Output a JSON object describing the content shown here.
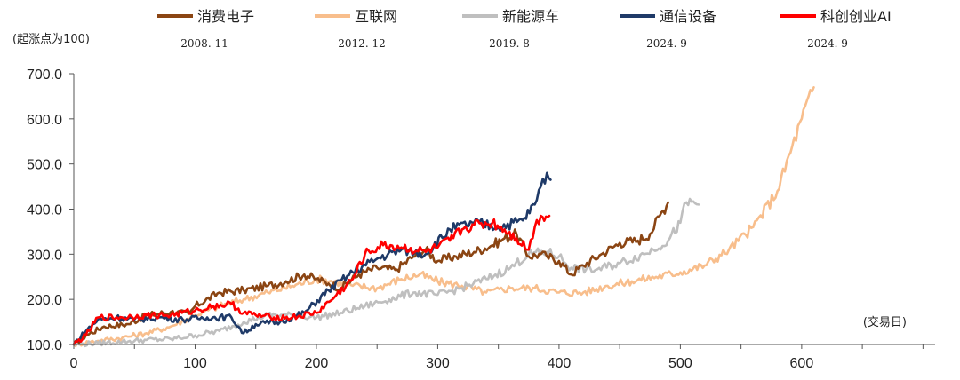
{
  "chart_data": {
    "type": "line",
    "ylabel": "(起涨点为100)",
    "xlabel": "(交易日)",
    "xlim": [
      0,
      710
    ],
    "ylim": [
      100,
      700
    ],
    "x_ticks": [
      0,
      100,
      200,
      300,
      400,
      500,
      600
    ],
    "y_ticks": [
      100,
      200,
      300,
      400,
      500,
      600,
      700
    ],
    "y_tick_labels": [
      "100.0",
      "200.0",
      "300.0",
      "400.0",
      "500.0",
      "600.0",
      "700.0"
    ],
    "grid": false,
    "legend_position": "top",
    "series": [
      {
        "name": "消费电子",
        "start_date": "2008. 11",
        "color": "#8B4513",
        "x": [
          0,
          10,
          25,
          45,
          60,
          80,
          95,
          100,
          120,
          140,
          160,
          175,
          190,
          200,
          210,
          220,
          235,
          250,
          265,
          280,
          290,
          300,
          315,
          330,
          345,
          355,
          365,
          375,
          385,
          390,
          400,
          410,
          420,
          435,
          450,
          465,
          475,
          483,
          490
        ],
        "y": [
          100,
          120,
          140,
          145,
          165,
          172,
          168,
          185,
          215,
          220,
          230,
          240,
          255,
          245,
          235,
          225,
          255,
          270,
          265,
          295,
          310,
          285,
          295,
          305,
          320,
          335,
          345,
          295,
          300,
          295,
          285,
          255,
          275,
          300,
          325,
          330,
          345,
          385,
          415
        ]
      },
      {
        "name": "互联网",
        "start_date": "2012. 12",
        "color": "#F8BE8C",
        "x": [
          0,
          20,
          40,
          60,
          80,
          100,
          120,
          140,
          160,
          180,
          200,
          215,
          230,
          250,
          270,
          285,
          300,
          320,
          340,
          360,
          380,
          400,
          420,
          440,
          460,
          480,
          500,
          520,
          540,
          560,
          580,
          600,
          610
        ],
        "y": [
          100,
          108,
          115,
          125,
          140,
          165,
          185,
          200,
          215,
          230,
          245,
          240,
          230,
          225,
          245,
          255,
          240,
          230,
          215,
          225,
          225,
          215,
          215,
          230,
          240,
          250,
          260,
          275,
          310,
          360,
          440,
          600,
          670
        ]
      },
      {
        "name": "新能源车",
        "start_date": "2019. 8",
        "color": "#BFBFBF",
        "x": [
          0,
          20,
          40,
          60,
          80,
          100,
          120,
          140,
          160,
          180,
          200,
          220,
          240,
          260,
          280,
          300,
          320,
          340,
          360,
          375,
          390,
          400,
          410,
          430,
          450,
          470,
          490,
          500,
          505,
          515
        ],
        "y": [
          100,
          103,
          106,
          110,
          112,
          120,
          130,
          150,
          165,
          165,
          160,
          170,
          185,
          200,
          215,
          210,
          225,
          245,
          270,
          300,
          305,
          295,
          270,
          265,
          280,
          300,
          330,
          370,
          415,
          410
        ]
      },
      {
        "name": "通信设备",
        "start_date": "2024. 9",
        "color": "#1F3A68",
        "x": [
          0,
          10,
          20,
          35,
          50,
          70,
          90,
          110,
          130,
          140,
          150,
          170,
          190,
          210,
          230,
          250,
          270,
          290,
          310,
          330,
          350,
          370,
          380,
          385,
          390,
          393
        ],
        "y": [
          100,
          130,
          155,
          160,
          155,
          160,
          155,
          160,
          160,
          125,
          145,
          150,
          170,
          220,
          260,
          290,
          310,
          300,
          355,
          370,
          360,
          375,
          410,
          450,
          480,
          465
        ]
      },
      {
        "name": "科创创业AI",
        "start_date": "2024. 9",
        "color": "#FF0000",
        "x": [
          0,
          10,
          20,
          40,
          60,
          80,
          100,
          115,
          130,
          140,
          150,
          165,
          180,
          200,
          215,
          230,
          240,
          255,
          270,
          290,
          300,
          310,
          320,
          330,
          345,
          355,
          365,
          375,
          380,
          385,
          392
        ],
        "y": [
          100,
          120,
          160,
          160,
          165,
          165,
          175,
          185,
          190,
          170,
          165,
          160,
          160,
          170,
          205,
          245,
          300,
          320,
          315,
          305,
          315,
          330,
          355,
          365,
          370,
          355,
          335,
          310,
          360,
          385,
          385
        ]
      }
    ]
  }
}
